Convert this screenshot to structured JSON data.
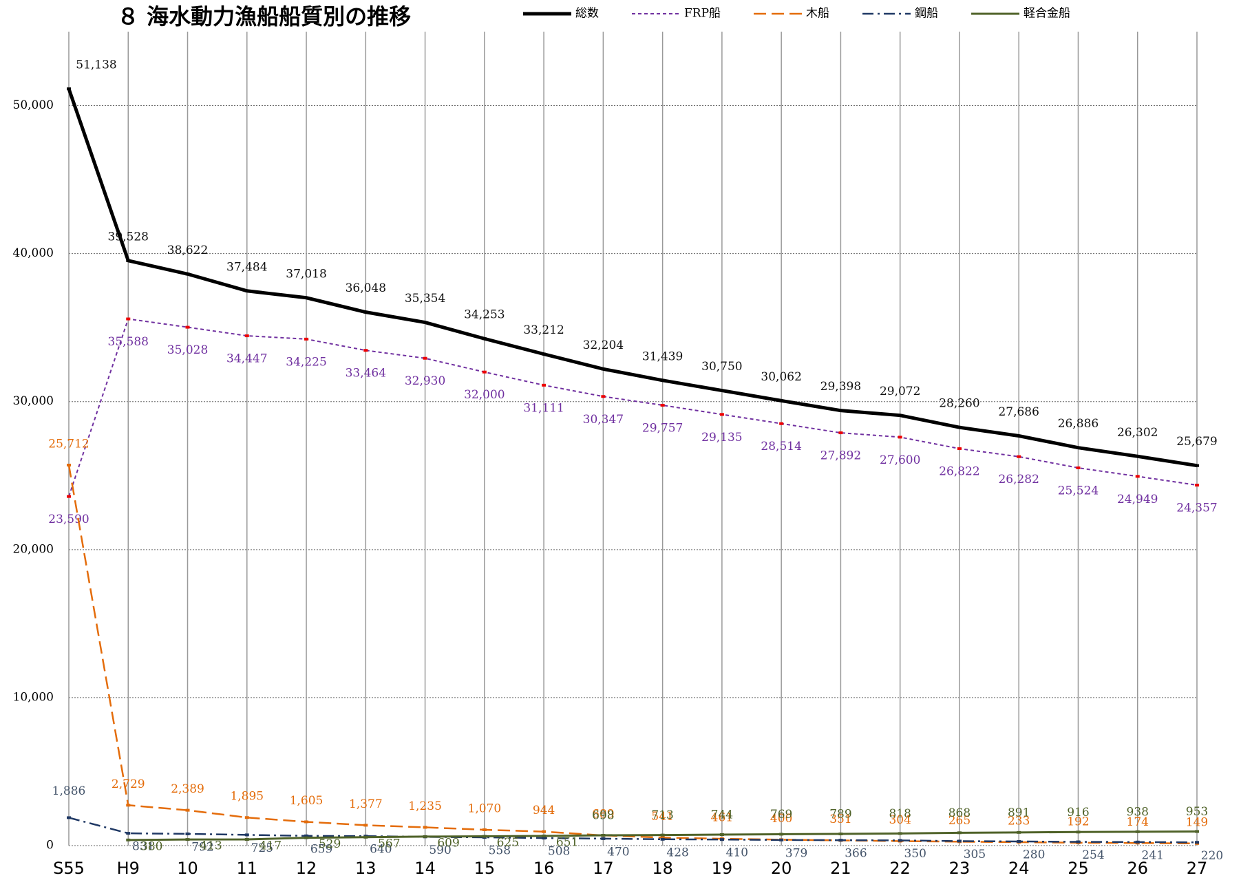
{
  "chart_data": {
    "type": "line",
    "title": "８ 海水動力漁船船質別の推移",
    "categories": [
      "S55",
      "H9",
      "10",
      "11",
      "12",
      "13",
      "14",
      "15",
      "16",
      "17",
      "18",
      "19",
      "20",
      "21",
      "22",
      "23",
      "24",
      "25",
      "26",
      "27"
    ],
    "ylim": [
      0,
      55000
    ],
    "yticks": [
      0,
      {
        "value": 10000,
        "label": "10,000"
      },
      {
        "value": 20000,
        "label": "20,000"
      },
      {
        "value": 30000,
        "label": "30,000"
      },
      {
        "value": 40000,
        "label": "40,000"
      },
      {
        "value": 50000,
        "label": "50,000"
      }
    ],
    "grid": true,
    "legend": "top",
    "series": [
      {
        "name": "総数",
        "color": "#000000",
        "values": [
          51138,
          39528,
          38622,
          37484,
          37018,
          36048,
          35354,
          34253,
          33212,
          32204,
          31439,
          30750,
          30062,
          29398,
          29072,
          28260,
          27686,
          26886,
          26302,
          25679
        ],
        "value_labels": [
          "51,138",
          "39,528",
          "38,622",
          "37,484",
          "37,018",
          "36,048",
          "35,354",
          "34,253",
          "33,212",
          "32,204",
          "31,439",
          "30,750",
          "30,062",
          "29,398",
          "29,072",
          "28,260",
          "27,686",
          "26,886",
          "26,302",
          "25,679"
        ]
      },
      {
        "name": "FRP船",
        "color": "#7030a0",
        "values": [
          23590,
          35588,
          35028,
          34447,
          34225,
          33464,
          32930,
          32000,
          31111,
          30347,
          29757,
          29135,
          28514,
          27892,
          27600,
          26822,
          26282,
          25524,
          24949,
          24357
        ],
        "value_labels": [
          "23,590",
          "35,588",
          "35,028",
          "34,447",
          "34,225",
          "33,464",
          "32,930",
          "32,000",
          "31,111",
          "30,347",
          "29,757",
          "29,135",
          "28,514",
          "27,892",
          "27,600",
          "26,822",
          "26,282",
          "25,524",
          "24,949",
          "24,357"
        ]
      },
      {
        "name": "木船",
        "color": "#e46c0a",
        "values": [
          25712,
          2729,
          2389,
          1895,
          1605,
          1377,
          1235,
          1070,
          944,
          689,
          541,
          461,
          400,
          351,
          304,
          265,
          233,
          192,
          174,
          149
        ],
        "value_labels": [
          "25,712",
          "2,729",
          "2,389",
          "1,895",
          "1,605",
          "1,377",
          "1,235",
          "1,070",
          "944",
          "689",
          "541",
          "461",
          "400",
          "351",
          "304",
          "265",
          "233",
          "192",
          "174",
          "149"
        ]
      },
      {
        "name": "鋼船",
        "color": "#1f3864",
        "values": [
          1886,
          831,
          792,
          725,
          659,
          640,
          590,
          558,
          508,
          470,
          428,
          410,
          379,
          366,
          350,
          305,
          280,
          254,
          241,
          220
        ],
        "value_labels": [
          "1,886",
          "831",
          "792",
          "725",
          "659",
          "640",
          "590",
          "558",
          "508",
          "470",
          "428",
          "410",
          "379",
          "366",
          "350",
          "305",
          "280",
          "254",
          "241",
          "220"
        ]
      },
      {
        "name": "軽合金船",
        "color": "#4f6228",
        "values": [
          null,
          380,
          413,
          417,
          529,
          567,
          609,
          625,
          651,
          698,
          713,
          744,
          769,
          789,
          818,
          868,
          891,
          916,
          938,
          953
        ],
        "value_labels": [
          null,
          "380",
          "413",
          "417",
          "529",
          "567",
          "609",
          "625",
          "651",
          "698",
          "713",
          "744",
          "769",
          "789",
          "818",
          "868",
          "891",
          "916",
          "938",
          "953"
        ]
      }
    ]
  }
}
